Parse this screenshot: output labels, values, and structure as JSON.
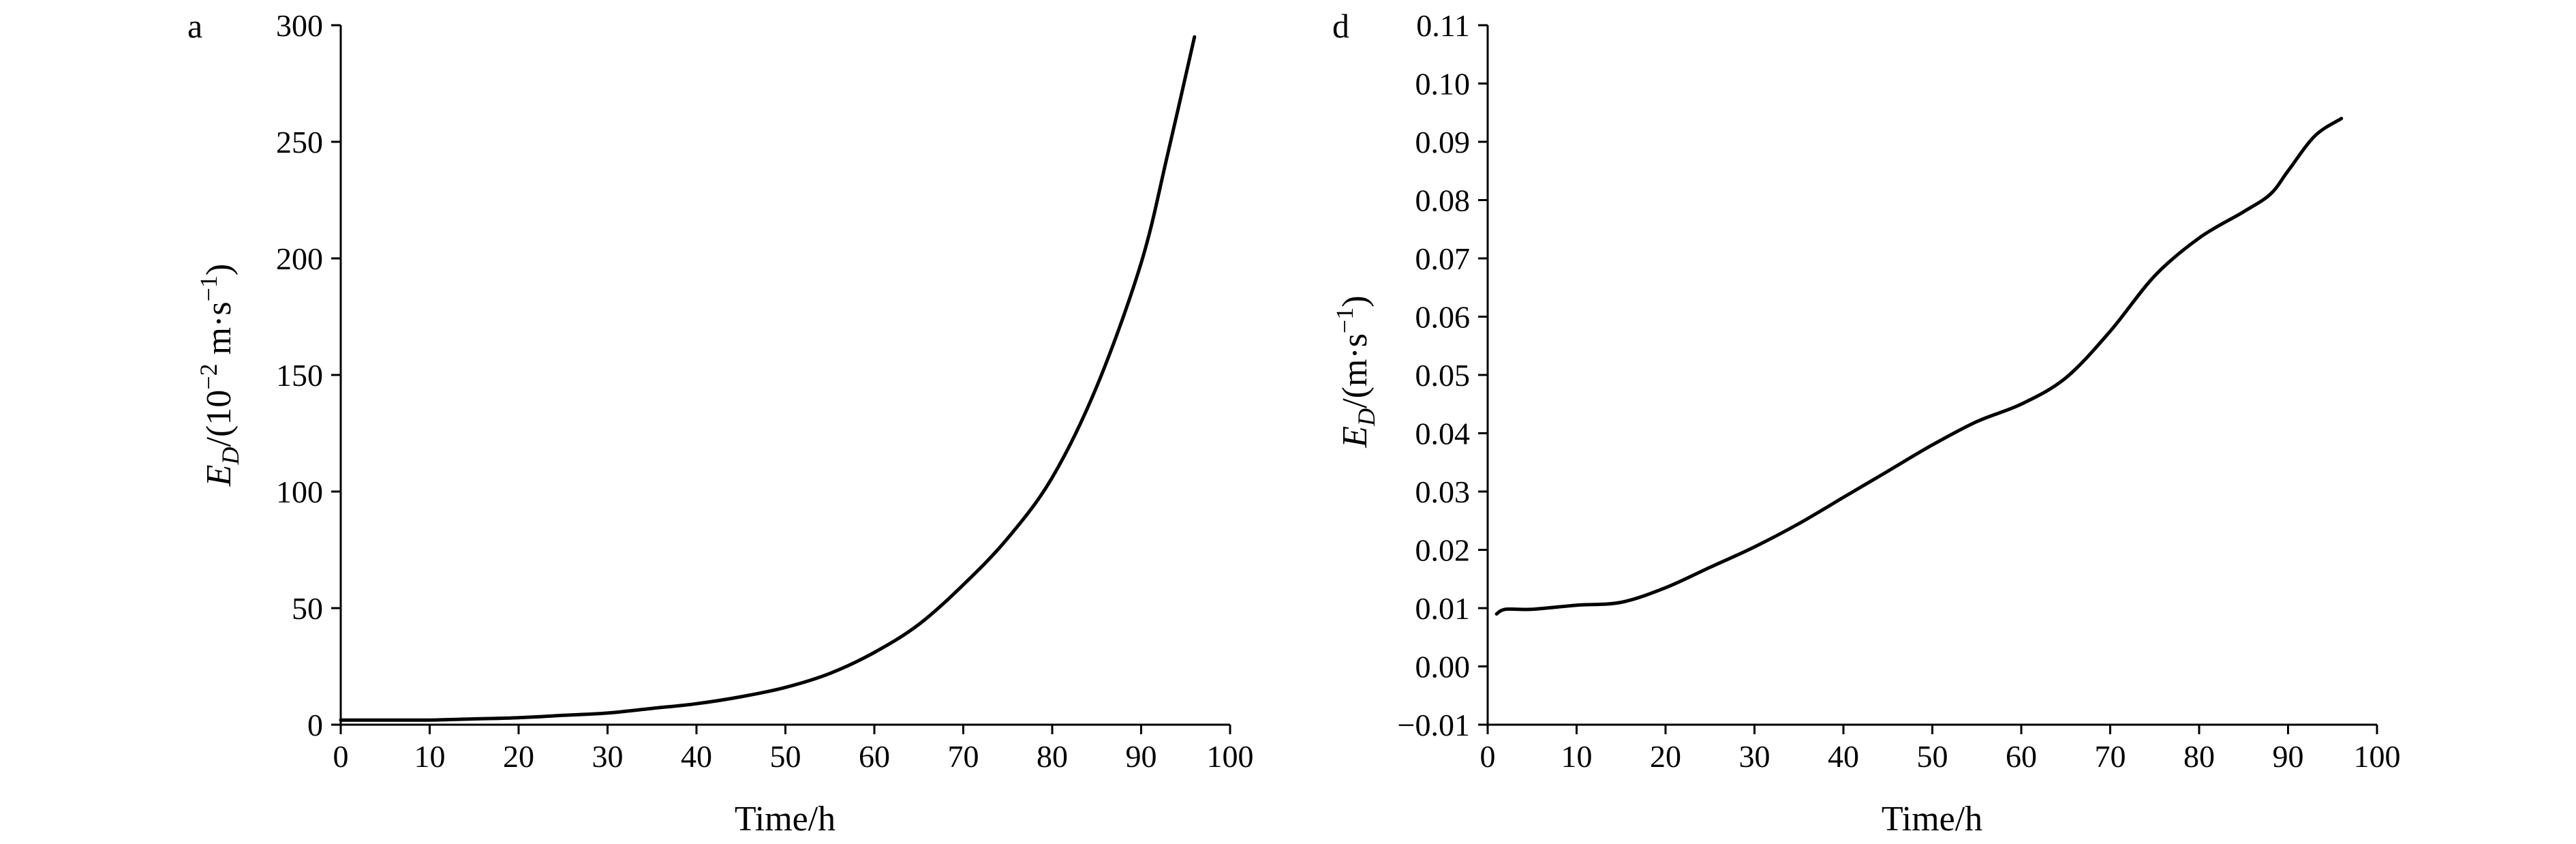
{
  "chart_data": [
    {
      "type": "line",
      "panel_label": "a",
      "xlabel": "Time/h",
      "ylabel_main": "E",
      "ylabel_sub": "D",
      "ylabel_unit": "/(10",
      "ylabel_exp": "−2",
      "ylabel_unit_rest": " m·s",
      "ylabel_unit_exp": "−1",
      "ylabel_close": ")",
      "xlim": [
        0,
        100
      ],
      "ylim": [
        0,
        300
      ],
      "xticks": [
        "0",
        "10",
        "20",
        "30",
        "40",
        "50",
        "60",
        "70",
        "80",
        "90",
        "100"
      ],
      "yticks": [
        "0",
        "50",
        "100",
        "150",
        "200",
        "250",
        "300"
      ],
      "grid": false,
      "series": [
        {
          "x": [
            0,
            5,
            10,
            15,
            20,
            25,
            30,
            35,
            40,
            45,
            50,
            55,
            60,
            65,
            70,
            75,
            80,
            85,
            90,
            93,
            96
          ],
          "y": [
            2,
            2,
            2,
            2.5,
            3,
            4,
            5,
            7,
            9,
            12,
            16,
            22,
            31,
            43,
            60,
            80,
            106,
            145,
            198,
            245,
            295
          ]
        }
      ]
    },
    {
      "type": "line",
      "panel_label": "d",
      "xlabel": "Time/h",
      "ylabel_main": "E",
      "ylabel_sub": "D",
      "ylabel_unit": "/(m·s",
      "ylabel_unit_exp": "−1",
      "ylabel_close": ")",
      "xlim": [
        0,
        100
      ],
      "ylim": [
        -0.01,
        0.11
      ],
      "xticks": [
        "0",
        "10",
        "20",
        "30",
        "40",
        "50",
        "60",
        "70",
        "80",
        "90",
        "100"
      ],
      "yticks": [
        "−0.01",
        "0.00",
        "0.01",
        "0.02",
        "0.03",
        "0.04",
        "0.05",
        "0.06",
        "0.07",
        "0.08",
        "0.09",
        "0.10",
        "0.11"
      ],
      "grid": false,
      "series": [
        {
          "x": [
            1,
            2,
            5,
            10,
            15,
            20,
            25,
            30,
            35,
            40,
            45,
            50,
            55,
            60,
            65,
            70,
            75,
            80,
            85,
            88,
            90,
            93,
            96
          ],
          "y": [
            0.009,
            0.0098,
            0.0098,
            0.0105,
            0.011,
            0.0135,
            0.017,
            0.0205,
            0.0245,
            0.029,
            0.0335,
            0.038,
            0.042,
            0.045,
            0.0495,
            0.0575,
            0.067,
            0.0735,
            0.078,
            0.081,
            0.085,
            0.091,
            0.094
          ]
        }
      ]
    }
  ]
}
